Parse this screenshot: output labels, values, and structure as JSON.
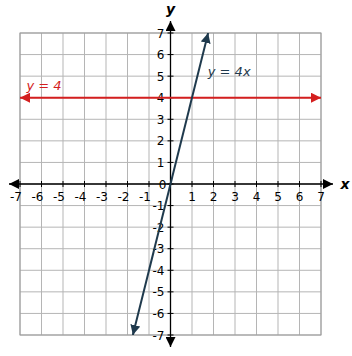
{
  "chart_data": {
    "type": "line",
    "x_label": "x",
    "y_label": "y",
    "x": [
      -7,
      -1.75,
      1.75,
      7
    ],
    "series": [
      {
        "name": "y = 4",
        "color": "#d41f1f",
        "values": [
          4,
          4,
          4,
          4
        ]
      },
      {
        "name": "y = 4x",
        "color": "#1f3a4d",
        "values": [
          null,
          -7,
          7,
          null
        ]
      }
    ],
    "xlim": [
      -7,
      7
    ],
    "ylim": [
      -7,
      7
    ],
    "xticks": [
      -7,
      -6,
      -5,
      -4,
      -3,
      -2,
      -1,
      0,
      1,
      2,
      3,
      4,
      5,
      6,
      7
    ],
    "yticks": [
      -7,
      -6,
      -5,
      -4,
      -3,
      -2,
      -1,
      0,
      1,
      2,
      3,
      4,
      5,
      6,
      7
    ],
    "grid": true
  }
}
